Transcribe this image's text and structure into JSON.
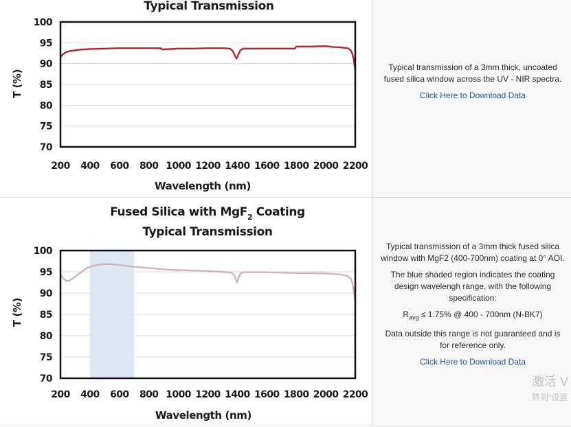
{
  "chart_data": [
    {
      "type": "line",
      "title": "Typical Transmission",
      "xlabel": "Wavelength (nm)",
      "ylabel": "T (%)",
      "xlim": [
        200,
        2200
      ],
      "ylim": [
        70,
        100
      ],
      "x_ticks": [
        "200",
        "400",
        "600",
        "800",
        "1000",
        "1200",
        "1400",
        "1600",
        "1800",
        "2000",
        "2200"
      ],
      "y_ticks": [
        "100",
        "95",
        "90",
        "85",
        "80",
        "75",
        "70"
      ],
      "grid": true,
      "line_color": "#b3242b",
      "series": [
        {
          "x": [
            200,
            210,
            230,
            260,
            300,
            350,
            400,
            500,
            600,
            700,
            800,
            880,
            890,
            950,
            1000,
            1100,
            1200,
            1300,
            1350,
            1370,
            1385,
            1395,
            1405,
            1420,
            1440,
            1500,
            1600,
            1700,
            1790,
            1800,
            1900,
            2000,
            2050,
            2100,
            2150,
            2170,
            2180,
            2190,
            2195,
            2200
          ],
          "y": [
            91.5,
            92.0,
            92.6,
            93.0,
            93.2,
            93.4,
            93.5,
            93.6,
            93.7,
            93.7,
            93.7,
            93.7,
            93.4,
            93.5,
            93.6,
            93.6,
            93.7,
            93.7,
            93.6,
            93.0,
            91.8,
            91.2,
            92.0,
            93.2,
            93.6,
            93.6,
            93.6,
            93.6,
            93.6,
            94.1,
            94.1,
            94.2,
            94.0,
            93.9,
            93.7,
            93.2,
            92.4,
            91.0,
            89.5,
            88.5
          ]
        }
      ]
    },
    {
      "type": "line",
      "title": "Fused Silica with MgF",
      "title_sub": "2",
      "title_suffix": " Coating",
      "title_line2": "Typical Transmission",
      "xlabel": "Wavelength (nm)",
      "ylabel": "T (%)",
      "xlim": [
        200,
        2200
      ],
      "ylim": [
        70,
        100
      ],
      "x_ticks": [
        "200",
        "400",
        "600",
        "800",
        "1000",
        "1200",
        "1400",
        "1600",
        "1800",
        "2000",
        "2200"
      ],
      "y_ticks": [
        "100",
        "95",
        "90",
        "85",
        "80",
        "75",
        "70"
      ],
      "grid": true,
      "line_color": "#d2b3bb",
      "shaded_region": [
        400,
        700
      ],
      "shade_color": "#dce9f5",
      "series": [
        {
          "x": [
            200,
            215,
            240,
            260,
            290,
            320,
            350,
            380,
            420,
            460,
            500,
            550,
            600,
            650,
            700,
            800,
            900,
            1000,
            1100,
            1200,
            1300,
            1360,
            1380,
            1390,
            1398,
            1408,
            1420,
            1440,
            1500,
            1600,
            1700,
            1800,
            1900,
            2000,
            2100,
            2150,
            2170,
            2180,
            2190,
            2200
          ],
          "y": [
            94.5,
            93.6,
            92.8,
            92.9,
            93.6,
            94.4,
            95.2,
            95.9,
            96.4,
            96.7,
            96.8,
            96.8,
            96.6,
            96.4,
            96.2,
            95.9,
            95.6,
            95.4,
            95.3,
            95.2,
            95.0,
            94.8,
            94.2,
            93.2,
            92.4,
            93.5,
            94.6,
            94.9,
            94.9,
            94.9,
            94.8,
            94.7,
            94.7,
            94.6,
            94.4,
            94.0,
            93.4,
            92.4,
            90.5,
            88.0
          ]
        }
      ]
    }
  ],
  "descriptions": [
    {
      "paragraphs": [
        "Typical transmission of a 3mm thick, uncoated fused silica window across the UV - NIR spectra."
      ],
      "link": "Click Here to Download Data"
    },
    {
      "p1": "Typical transmission of a 3mm thick fused silica window with MgF2 (400-700nm) coating at 0° AOI.",
      "p2": "The blue shaded region indicates the coating design wavelengh range, with the following specification:",
      "spec_r": "R",
      "spec_sub": "avg",
      "spec_rest": " ≤ 1.75% @ 400 - 700nm (N-BK7)",
      "p3": "Data outside this range is not guaranteed and is for reference only.",
      "link": "Click Here to Download Data"
    }
  ],
  "watermark": {
    "line1": "激活 V",
    "line2": "转到\"设置"
  }
}
